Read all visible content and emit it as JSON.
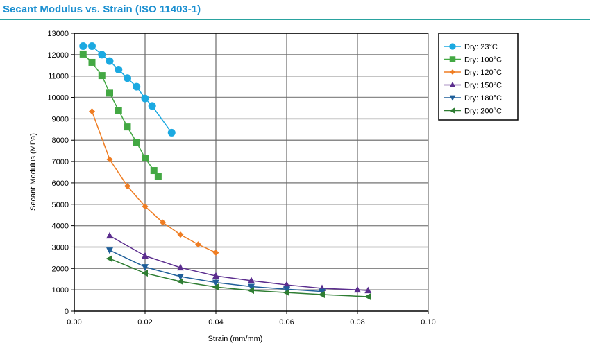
{
  "header": {
    "title": "Secant Modulus vs. Strain (ISO 11403-1)"
  },
  "chart_data": {
    "type": "line",
    "title": "Secant Modulus vs. Strain (ISO 11403-1)",
    "xlabel": "Strain (mm/mm)",
    "ylabel": "Secant Modulus (MPa)",
    "xlim": [
      0,
      0.1
    ],
    "ylim": [
      0,
      13000
    ],
    "xticks": [
      "0.00",
      "0.02",
      "0.04",
      "0.06",
      "0.08",
      "0.10"
    ],
    "yticks": [
      "0",
      "1000",
      "2000",
      "3000",
      "4000",
      "5000",
      "6000",
      "7000",
      "8000",
      "9000",
      "10000",
      "11000",
      "12000",
      "13000"
    ],
    "grid": true,
    "legend": "right",
    "series": [
      {
        "name": "Dry: 23°C",
        "color": "#1ba9e1",
        "marker": "circle",
        "x": [
          0.0025,
          0.005,
          0.0078,
          0.01,
          0.0125,
          0.015,
          0.0176,
          0.02,
          0.022,
          0.0275
        ],
        "y": [
          12400,
          12400,
          12000,
          11700,
          11300,
          10900,
          10500,
          9950,
          9600,
          8350
        ]
      },
      {
        "name": "Dry: 100°C",
        "color": "#43a843",
        "marker": "square",
        "x": [
          0.0025,
          0.005,
          0.0078,
          0.01,
          0.0125,
          0.015,
          0.0176,
          0.02,
          0.0225,
          0.0237
        ],
        "y": [
          12030,
          11640,
          11020,
          10200,
          9400,
          8620,
          7900,
          7160,
          6580,
          6320
        ]
      },
      {
        "name": "Dry: 120°C",
        "color": "#ef7d22",
        "marker": "diamond",
        "x": [
          0.005,
          0.01,
          0.015,
          0.02,
          0.025,
          0.03,
          0.035,
          0.04
        ],
        "y": [
          9350,
          7100,
          5850,
          4900,
          4150,
          3580,
          3120,
          2740
        ]
      },
      {
        "name": "Dry: 150°C",
        "color": "#5b2d8e",
        "marker": "triangle-up",
        "x": [
          0.01,
          0.02,
          0.03,
          0.04,
          0.05,
          0.06,
          0.07,
          0.08,
          0.083
        ],
        "y": [
          3530,
          2590,
          2040,
          1650,
          1430,
          1230,
          1070,
          1000,
          970
        ]
      },
      {
        "name": "Dry: 180°C",
        "color": "#1f5f9a",
        "marker": "triangle-down",
        "x": [
          0.01,
          0.02,
          0.03,
          0.04,
          0.05,
          0.06,
          0.07
        ],
        "y": [
          2850,
          2070,
          1620,
          1340,
          1150,
          1030,
          920
        ]
      },
      {
        "name": "Dry: 200°C",
        "color": "#2e7d32",
        "marker": "triangle-left",
        "x": [
          0.01,
          0.02,
          0.03,
          0.04,
          0.05,
          0.06,
          0.07,
          0.083
        ],
        "y": [
          2460,
          1780,
          1390,
          1130,
          970,
          870,
          780,
          680
        ]
      }
    ]
  }
}
